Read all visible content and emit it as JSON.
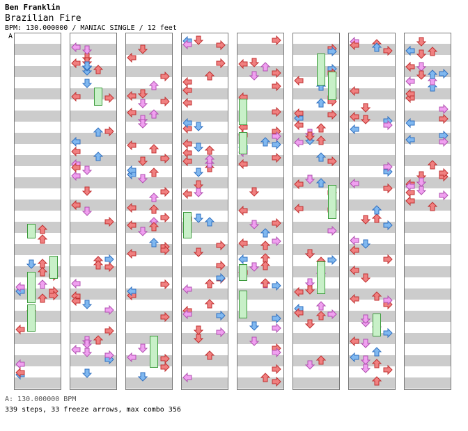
{
  "header": {
    "artist": "Ben Franklin",
    "title": "Brazilian Fire",
    "meta": "BPM: 130.000000 / MANIAC SINGLE / 12 feet",
    "marker": "A"
  },
  "footer": {
    "bpm_line": "A: 130.000000 BPM",
    "stats_line": "339 steps, 33 freeze arrows, max combo 356"
  },
  "chart": {
    "columns": 8,
    "lanes": [
      "left",
      "down",
      "up",
      "right"
    ],
    "colors": {
      "red": "#f08080",
      "pink": "#f0a0f0",
      "blue": "#80b8f0",
      "freeze_fill": "#c8f0c8",
      "freeze_border": "#3c9a3c",
      "stripe": "#cccccc",
      "border": "#777777"
    }
  }
}
